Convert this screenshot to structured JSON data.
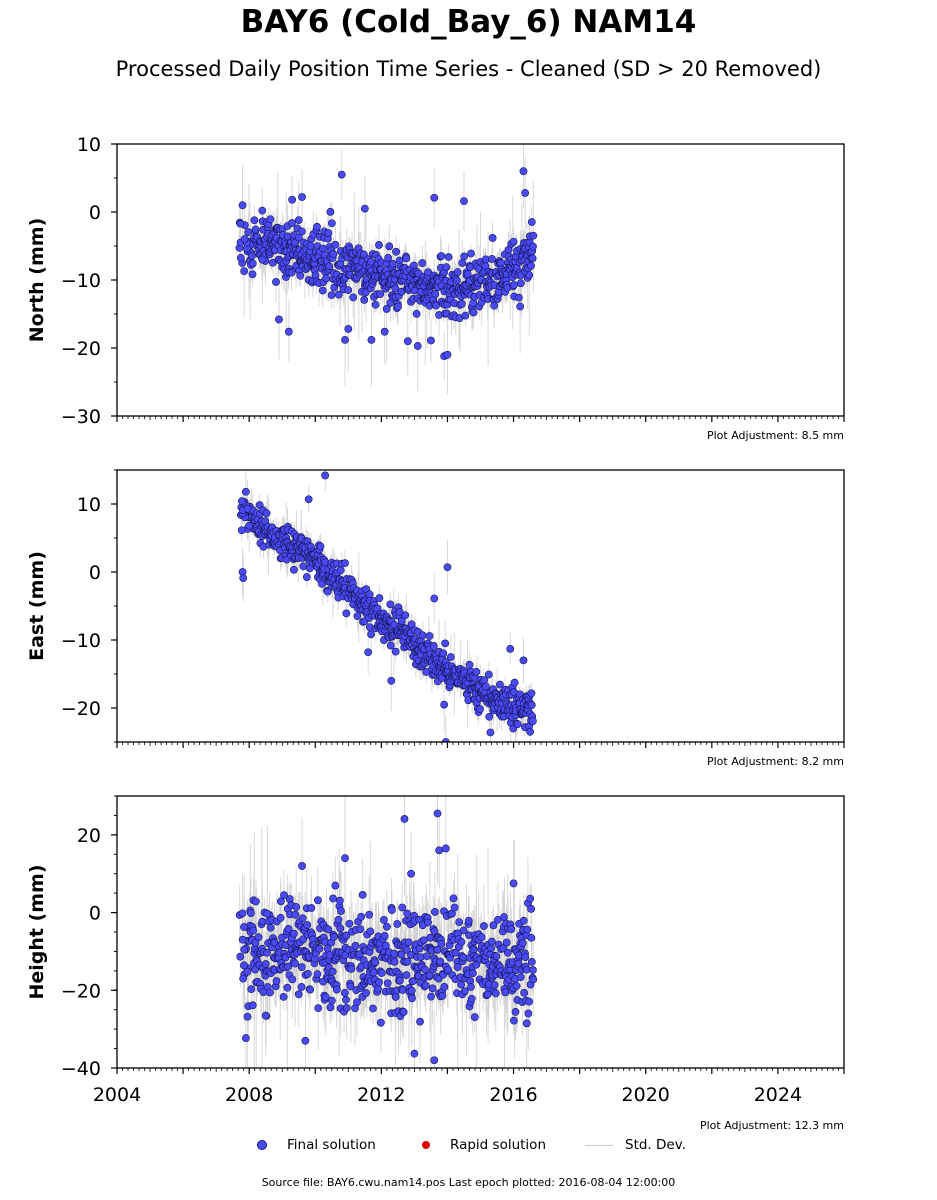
{
  "title": "BAY6 (Cold_Bay_6) NAM14",
  "subtitle": "Processed Daily Position Time Series - Cleaned (SD > 20 Removed)",
  "legend": {
    "final": "Final solution",
    "rapid": "Rapid solution",
    "std": "Std. Dev."
  },
  "source": "Source file: BAY6.cwu.nam14.pos  Last epoch plotted: 2016-08-04 12:00:00",
  "colors": {
    "final": "#4a4af5",
    "rapid": "#e00000",
    "std": "#cccccc"
  },
  "chart_data": {
    "type": "scatter",
    "x_ticks": [
      2004,
      2008,
      2012,
      2016,
      2020,
      2024
    ],
    "x_tick_labels": [
      "2004",
      "2008",
      "2012",
      "2016",
      "2020",
      "2024"
    ],
    "xlim": [
      2004,
      2026
    ],
    "x_data_range": [
      2007.7,
      2016.6
    ],
    "panels": [
      {
        "ylabel": "North (mm)",
        "ylim": [
          -30,
          10
        ],
        "yticks": [
          10,
          0,
          -10,
          -20,
          -30
        ],
        "ytick_labels": [
          "10",
          "0",
          "−10",
          "−20",
          "−30"
        ],
        "adjustment": "Plot Adjustment: 8.5 mm",
        "trend_x": [
          2007.7,
          2009.0,
          2010.5,
          2012.0,
          2013.5,
          2014.5,
          2015.3,
          2016.0,
          2016.6
        ],
        "trend_y": [
          -3.5,
          -5.5,
          -7.5,
          -9.5,
          -11.0,
          -11.5,
          -10.5,
          -8.0,
          -6.0
        ],
        "noise_sd": 2.0,
        "seed": 11,
        "outliers": [
          [
            2007.8,
            1.0
          ],
          [
            2007.85,
            -8.7
          ],
          [
            2008.4,
            -7.0
          ],
          [
            2008.9,
            -15.8
          ],
          [
            2009.2,
            -17.6
          ],
          [
            2009.3,
            1.8
          ],
          [
            2009.6,
            2.2
          ],
          [
            2010.8,
            5.5
          ],
          [
            2010.9,
            -18.8
          ],
          [
            2011.0,
            -17.2
          ],
          [
            2011.7,
            -18.8
          ],
          [
            2012.1,
            -17.6
          ],
          [
            2012.8,
            -19.0
          ],
          [
            2013.1,
            -19.7
          ],
          [
            2013.5,
            -18.9
          ],
          [
            2013.6,
            2.1
          ],
          [
            2013.9,
            -21.2
          ],
          [
            2014.0,
            -21.0
          ],
          [
            2014.5,
            1.6
          ],
          [
            2016.3,
            6.0
          ],
          [
            2016.35,
            2.8
          ],
          [
            2016.2,
            -13.9
          ],
          [
            2011.5,
            0.5
          ],
          [
            2009.5,
            -1.2
          ]
        ]
      },
      {
        "ylabel": "East (mm)",
        "ylim": [
          -25,
          15
        ],
        "yticks": [
          10,
          0,
          -10,
          -20
        ],
        "ytick_labels": [
          "10",
          "0",
          "−10",
          "−20"
        ],
        "adjustment": "Plot Adjustment: 8.2 mm",
        "trend_x": [
          2007.7,
          2008.2,
          2008.8,
          2009.5,
          2010.5,
          2011.5,
          2012.5,
          2013.5,
          2014.5,
          2015.5,
          2016.0,
          2016.6
        ],
        "trend_y": [
          9.0,
          7.0,
          5.0,
          3.5,
          -0.5,
          -5.0,
          -8.5,
          -12.5,
          -16.5,
          -19.0,
          -19.5,
          -20.0
        ],
        "noise_sd": 1.3,
        "seed": 23,
        "outliers": [
          [
            2007.8,
            0.0
          ],
          [
            2007.82,
            -0.9
          ],
          [
            2007.9,
            11.8
          ],
          [
            2007.95,
            9.3
          ],
          [
            2008.0,
            6.8
          ],
          [
            2009.8,
            10.7
          ],
          [
            2010.3,
            14.2
          ],
          [
            2010.9,
            1.3
          ],
          [
            2011.6,
            -11.8
          ],
          [
            2012.3,
            -16.0
          ],
          [
            2013.6,
            -3.9
          ],
          [
            2013.9,
            -19.5
          ],
          [
            2014.0,
            0.7
          ],
          [
            2013.95,
            -25.0
          ],
          [
            2015.9,
            -11.3
          ],
          [
            2016.3,
            -13.0
          ],
          [
            2016.5,
            -23.5
          ],
          [
            2015.3,
            -23.6
          ]
        ]
      },
      {
        "ylabel": "Height (mm)",
        "ylim": [
          -40,
          30
        ],
        "yticks": [
          20,
          0,
          -20,
          -40
        ],
        "ytick_labels": [
          "20",
          "0",
          "−20",
          "−40"
        ],
        "adjustment": "Plot Adjustment: 12.3 mm",
        "trend_x": [
          2007.7,
          2009.0,
          2010.5,
          2012.0,
          2013.5,
          2015.0,
          2016.6
        ],
        "trend_y": [
          -11.0,
          -10.0,
          -11.0,
          -12.5,
          -12.0,
          -12.0,
          -13.0
        ],
        "noise_sd": 6.5,
        "seed": 37,
        "outliers": [
          [
            2007.8,
            -0.2
          ],
          [
            2007.85,
            -9.5
          ],
          [
            2007.9,
            -32.3
          ],
          [
            2007.95,
            -26.8
          ],
          [
            2008.5,
            -26.5
          ],
          [
            2008.55,
            -0.3
          ],
          [
            2009.6,
            12.0
          ],
          [
            2010.9,
            14.0
          ],
          [
            2012.7,
            24.1
          ],
          [
            2012.9,
            10.0
          ],
          [
            2013.7,
            25.5
          ],
          [
            2013.75,
            16.0
          ],
          [
            2013.95,
            16.5
          ],
          [
            2013.0,
            -36.3
          ],
          [
            2013.6,
            -38.0
          ],
          [
            2016.0,
            7.5
          ],
          [
            2009.7,
            -33.0
          ],
          [
            2016.4,
            -28.5
          ]
        ]
      }
    ]
  }
}
